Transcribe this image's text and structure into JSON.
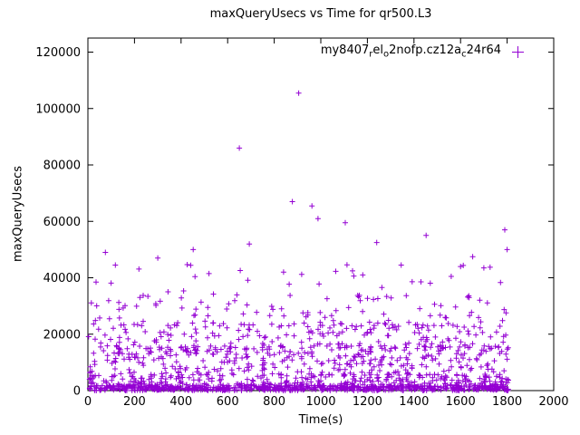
{
  "chart_data": {
    "type": "scatter",
    "title": "maxQueryUsecs vs Time for qr500.L3",
    "xlabel": "Time(s)",
    "ylabel": "maxQueryUsecs",
    "xlim": [
      0,
      2000
    ],
    "ylim": [
      0,
      125000
    ],
    "xticks": [
      0,
      200,
      400,
      600,
      800,
      1000,
      1200,
      1400,
      1600,
      1800,
      2000
    ],
    "yticks": [
      0,
      20000,
      40000,
      60000,
      80000,
      100000,
      120000
    ],
    "grid": false,
    "marker": "plus",
    "marker_color": "#9400D3",
    "axis_color": "#000000",
    "legend": {
      "position": "top-right-inside",
      "label_plain": "my8407relo2nofp.cz12ac24r64",
      "segments": [
        {
          "text": "my8407",
          "sub": false
        },
        {
          "text": "r",
          "sub": true
        },
        {
          "text": "el",
          "sub": false
        },
        {
          "text": "o",
          "sub": true
        },
        {
          "text": "2nofp.cz12a",
          "sub": false
        },
        {
          "text": "c",
          "sub": true
        },
        {
          "text": "24r64",
          "sub": false
        }
      ]
    },
    "x_data_range": [
      0,
      1810
    ],
    "outliers": [
      [
        905,
        105500
      ],
      [
        650,
        86000
      ],
      [
        878,
        67000
      ],
      [
        962,
        65500
      ],
      [
        988,
        61000
      ],
      [
        1105,
        59500
      ],
      [
        1790,
        57000
      ],
      [
        1452,
        55000
      ],
      [
        1240,
        52500
      ],
      [
        693,
        52000
      ],
      [
        452,
        50000
      ],
      [
        1800,
        50000
      ],
      [
        75,
        49000
      ],
      [
        1652,
        47500
      ],
      [
        300,
        47000
      ],
      [
        118,
        44500
      ],
      [
        1345,
        44500
      ],
      [
        1600,
        44000
      ],
      [
        1700,
        43500
      ],
      [
        520,
        41500
      ],
      [
        35,
        38500
      ],
      [
        1560,
        40500
      ],
      [
        840,
        42000
      ],
      [
        1180,
        41000
      ]
    ],
    "point_cloud": {
      "seed": 1234,
      "n": 1600,
      "x_min": 2,
      "x_max": 1806,
      "bands": [
        {
          "weight": 0.4,
          "y_min": 0,
          "y_max": 1800
        },
        {
          "weight": 0.18,
          "y_min": 1800,
          "y_max": 6000
        },
        {
          "weight": 0.2,
          "y_min": 6000,
          "y_max": 16000
        },
        {
          "weight": 0.13,
          "y_min": 14000,
          "y_max": 24000
        },
        {
          "weight": 0.07,
          "y_min": 22000,
          "y_max": 34000
        },
        {
          "weight": 0.02,
          "y_min": 32000,
          "y_max": 46000
        }
      ]
    }
  }
}
